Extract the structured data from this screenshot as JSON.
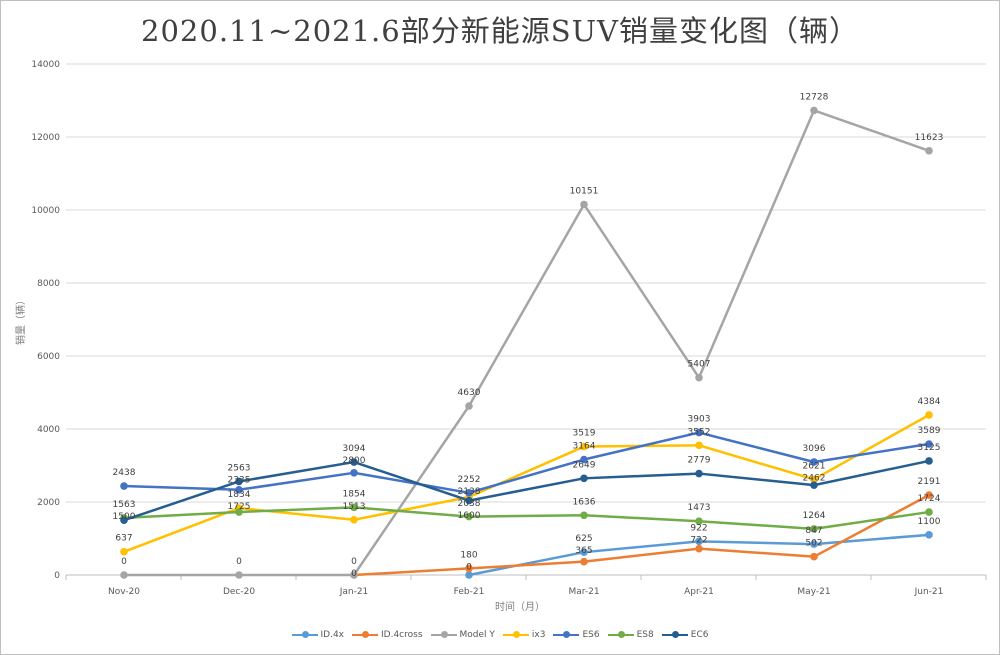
{
  "chart_data": {
    "type": "line",
    "title": "2020.11~2021.6部分新能源SUV销量变化图（辆）",
    "xlabel": "时间（月）",
    "ylabel": "销量（辆）",
    "categories": [
      "Nov-20",
      "Dec-20",
      "Jan-21",
      "Feb-21",
      "Mar-21",
      "Apr-21",
      "May-21",
      "Jun-21"
    ],
    "ylim": [
      0,
      14000
    ],
    "yticks": [
      0,
      2000,
      4000,
      6000,
      8000,
      10000,
      12000,
      14000
    ],
    "grid": true,
    "legend": "bottom",
    "series": [
      {
        "name": "ID.4x",
        "color": "#5B9BD5",
        "values": [
          null,
          null,
          null,
          0,
          625,
          922,
          847,
          1100
        ]
      },
      {
        "name": "ID.4cross",
        "color": "#ED7D31",
        "values": [
          null,
          null,
          0,
          180,
          365,
          722,
          502,
          2191
        ]
      },
      {
        "name": "Model Y",
        "color": "#A5A5A5",
        "values": [
          0,
          0,
          0,
          4630,
          10151,
          5407,
          12728,
          11623
        ]
      },
      {
        "name": "ix3",
        "color": "#FFC000",
        "values": [
          637,
          1834,
          1513,
          2138,
          3519,
          3552,
          2621,
          4384
        ]
      },
      {
        "name": "ES6",
        "color": "#4472C4",
        "values": [
          2438,
          2335,
          2800,
          2252,
          3164,
          3903,
          3096,
          3589
        ]
      },
      {
        "name": "ES8",
        "color": "#70AD47",
        "values": [
          1563,
          1725,
          1854,
          1600,
          1636,
          1473,
          1264,
          1724
        ]
      },
      {
        "name": "EC6",
        "color": "#255E91",
        "values": [
          1500,
          2563,
          3094,
          2038,
          2649,
          2779,
          2462,
          3125
        ]
      }
    ]
  }
}
